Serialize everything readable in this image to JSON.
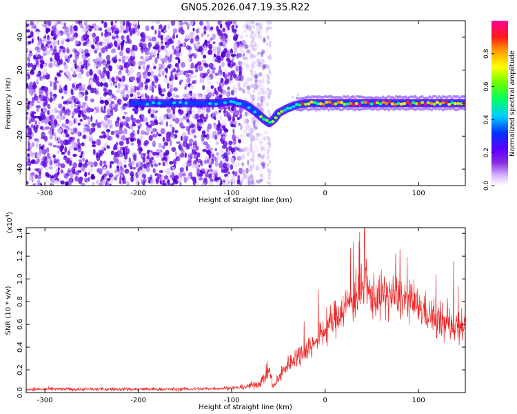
{
  "chart_data": [
    {
      "type": "heatmap",
      "title": "GN05.2026.047.19.35.R22",
      "xlabel": "Height of straight line (km)",
      "ylabel": "Frequency (Hz)",
      "xlim": [
        -320,
        150
      ],
      "ylim": [
        -50,
        50
      ],
      "xticks": [
        -300,
        -200,
        -100,
        0,
        100
      ],
      "yticks": [
        -40,
        -20,
        0,
        20,
        40
      ],
      "xtick_labels": [
        "-300",
        "-200",
        "-100",
        "0",
        "100"
      ],
      "ytick_labels": [
        "-40",
        "-20",
        "0",
        "20",
        "40"
      ],
      "colorbar": {
        "label": "Normalized spectral amplitude",
        "range": [
          0,
          1
        ],
        "ticks": [
          0,
          0.2,
          0.4,
          0.6,
          0.8
        ],
        "tick_labels": [
          "0.0",
          "0.2",
          "0.4",
          "0.6",
          "0.8"
        ],
        "colormap": "rainbow (purple-blue-cyan-green-yellow-red-magenta)"
      },
      "ridge": {
        "description": "Dominant frequency trace vs height",
        "x": [
          -200,
          -180,
          -160,
          -140,
          -120,
          -100,
          -85,
          -75,
          -65,
          -60,
          -55,
          -50,
          -40,
          -30,
          -20,
          0,
          50,
          100,
          150
        ],
        "y": [
          0,
          0,
          0,
          0,
          0,
          1,
          -1,
          -5,
          -10,
          -12,
          -10,
          -6,
          -3,
          -1,
          0,
          0,
          0,
          0,
          0
        ]
      },
      "noise_region": {
        "x_from": -320,
        "x_to": -70,
        "description": "broadband purple noise"
      }
    },
    {
      "type": "line",
      "title": "",
      "xlabel": "Height of straight line (km)",
      "ylabel": "SNR (10 * v/v)",
      "multiplier_label": "(x10",
      "multiplier_exp": "4",
      "multiplier_close": ")",
      "xlim": [
        -320,
        150
      ],
      "ylim": [
        0,
        1.45
      ],
      "xticks": [
        -300,
        -200,
        -100,
        0,
        100
      ],
      "xtick_labels": [
        "-300",
        "-200",
        "-100",
        "0",
        "100"
      ],
      "yticks": [
        0.0,
        0.2,
        0.4,
        0.6,
        0.8,
        1.0,
        1.2,
        1.4
      ],
      "ytick_labels": [
        "0.0",
        "0.2",
        "0.4",
        "0.6",
        "0.8",
        "1.0",
        "1.2",
        "1.4"
      ],
      "color": "#ee2222",
      "envelope": {
        "x": [
          -320,
          -250,
          -150,
          -100,
          -85,
          -70,
          -60,
          -55,
          -50,
          -40,
          -30,
          -20,
          -10,
          0,
          10,
          20,
          30,
          40,
          50,
          60,
          75,
          90,
          100,
          110,
          120,
          130,
          140,
          150
        ],
        "mean": [
          0.03,
          0.03,
          0.03,
          0.04,
          0.05,
          0.08,
          0.2,
          0.05,
          0.12,
          0.25,
          0.32,
          0.38,
          0.45,
          0.55,
          0.65,
          0.75,
          0.82,
          0.9,
          0.85,
          0.85,
          0.85,
          0.8,
          0.75,
          0.7,
          0.62,
          0.6,
          0.6,
          0.62
        ],
        "spread": [
          0.02,
          0.02,
          0.02,
          0.02,
          0.03,
          0.05,
          0.1,
          0.05,
          0.08,
          0.1,
          0.12,
          0.14,
          0.15,
          0.18,
          0.2,
          0.22,
          0.25,
          0.28,
          0.25,
          0.25,
          0.25,
          0.22,
          0.2,
          0.2,
          0.2,
          0.2,
          0.2,
          0.22
        ]
      },
      "peak": {
        "x": 42,
        "y": 1.45
      }
    }
  ]
}
